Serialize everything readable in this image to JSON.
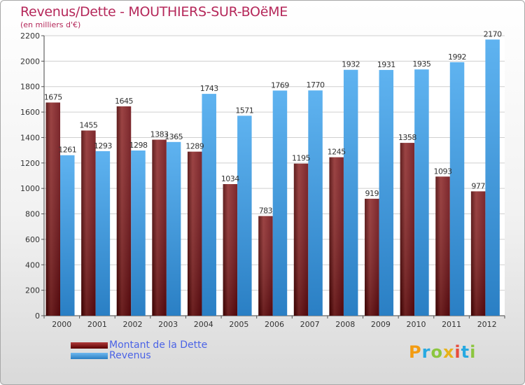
{
  "chart_data": {
    "type": "bar",
    "title": "Revenus/Dette - MOUTHIERS-SUR-BOëME",
    "subtitle": "(en milliers d'€)",
    "categories": [
      "2000",
      "2001",
      "2002",
      "2003",
      "2004",
      "2005",
      "2006",
      "2007",
      "2008",
      "2009",
      "2010",
      "2011",
      "2012"
    ],
    "series": [
      {
        "name": "Montant de la Dette",
        "color": "#7a0d14",
        "values": [
          1675,
          1455,
          1645,
          1383,
          1289,
          1034,
          783,
          1195,
          1245,
          919,
          1358,
          1093,
          977
        ]
      },
      {
        "name": "Revenus",
        "color": "#4aa3e8",
        "values": [
          1261,
          1293,
          1298,
          1365,
          1743,
          1571,
          1769,
          1770,
          1932,
          1931,
          1935,
          1992,
          2170
        ]
      }
    ],
    "ylim": [
      0,
      2200
    ],
    "yticks": [
      0,
      200,
      400,
      600,
      800,
      1000,
      1200,
      1400,
      1600,
      1800,
      2000,
      2200
    ],
    "grid": true,
    "legend_position": "bottom-left"
  },
  "logo": {
    "letters": [
      "P",
      "r",
      "o",
      "x",
      "i",
      "t",
      "i"
    ],
    "colors": [
      "#f39c12",
      "#27a9e1",
      "#8cc63f",
      "#e8b21a",
      "#e74c3c",
      "#27a9e1",
      "#8cc63f"
    ]
  }
}
